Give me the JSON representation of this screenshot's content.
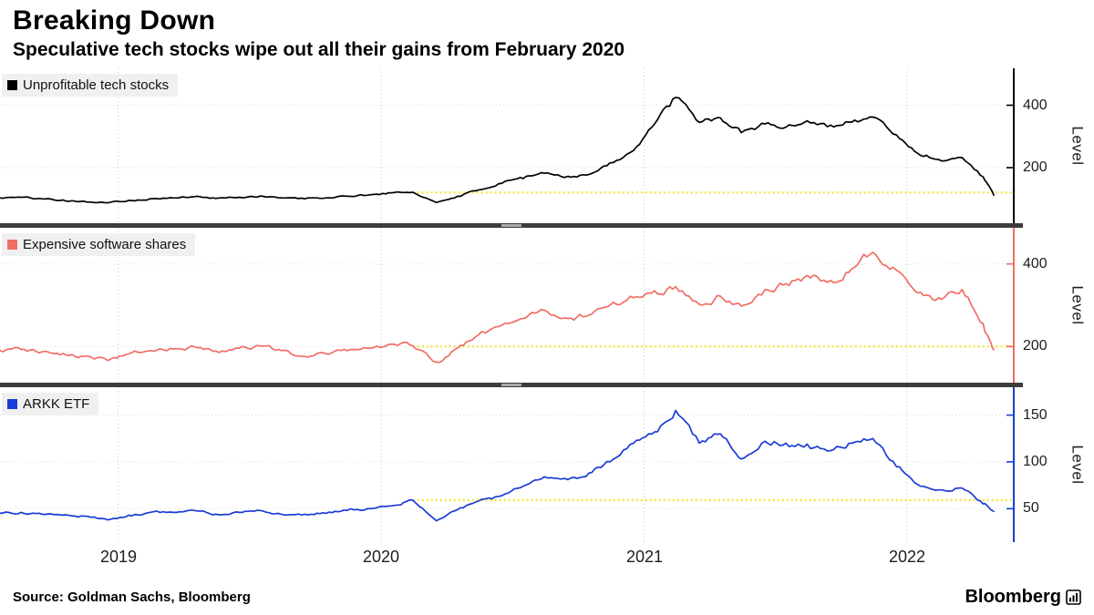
{
  "chart_data": {
    "type": "line",
    "title": "Breaking Down",
    "subtitle": "Speculative tech stocks wipe out all their gains from February 2020",
    "grid": "dotted",
    "legend_position": "top-left-of-each-panel",
    "x_range": [
      2018.55,
      2022.42
    ],
    "x_ticks": [
      {
        "year": 2019,
        "label": "2019"
      },
      {
        "year": 2020,
        "label": "2020"
      },
      {
        "year": 2021,
        "label": "2021"
      },
      {
        "year": 2022,
        "label": "2022"
      }
    ],
    "x": [
      2018.55,
      2018.63,
      2018.71,
      2018.79,
      2018.87,
      2018.96,
      2019.04,
      2019.12,
      2019.21,
      2019.29,
      2019.37,
      2019.46,
      2019.54,
      2019.62,
      2019.71,
      2019.79,
      2019.87,
      2019.96,
      2020.04,
      2020.12,
      2020.21,
      2020.29,
      2020.37,
      2020.46,
      2020.54,
      2020.62,
      2020.71,
      2020.79,
      2020.87,
      2020.96,
      2021.04,
      2021.12,
      2021.21,
      2021.29,
      2021.37,
      2021.46,
      2021.54,
      2021.62,
      2021.71,
      2021.79,
      2021.87,
      2021.96,
      2022.04,
      2022.12,
      2022.21,
      2022.29,
      2022.33
    ],
    "panels": [
      {
        "name": "Unprofitable tech stocks",
        "color": "#000000",
        "axis_color": "#000000",
        "ylabel": "Level",
        "yticks": [
          200,
          400
        ],
        "ylim": [
          45,
          495
        ],
        "baseline": {
          "value": 120,
          "from_x": 2020.12,
          "color": "#f3e73b",
          "note": "February 2020 level"
        },
        "values": [
          103,
          105,
          100,
          96,
          92,
          87,
          95,
          100,
          103,
          107,
          101,
          105,
          109,
          103,
          100,
          103,
          108,
          113,
          119,
          121,
          88,
          108,
          128,
          150,
          165,
          182,
          172,
          178,
          215,
          255,
          340,
          425,
          345,
          360,
          312,
          340,
          330,
          350,
          336,
          346,
          362,
          305,
          246,
          226,
          232,
          170,
          112
        ]
      },
      {
        "name": "Expensive software shares",
        "color": "#f06e64",
        "axis_color": "#f06e64",
        "ylabel": "Level",
        "yticks": [
          200,
          400
        ],
        "ylim": [
          130,
          470
        ],
        "baseline": {
          "value": 200,
          "from_x": 2020.12,
          "color": "#f3e73b",
          "note": "February 2020 level"
        },
        "values": [
          190,
          193,
          187,
          183,
          176,
          166,
          182,
          190,
          194,
          199,
          189,
          196,
          201,
          190,
          176,
          182,
          190,
          196,
          206,
          202,
          162,
          196,
          228,
          252,
          268,
          288,
          268,
          276,
          300,
          318,
          335,
          345,
          302,
          322,
          298,
          338,
          352,
          372,
          360,
          388,
          428,
          385,
          330,
          318,
          338,
          255,
          192
        ]
      },
      {
        "name": "ARKK ETF",
        "color": "#1a3cd6",
        "axis_color": "#1a3cd6",
        "ylabel": "Level",
        "yticks": [
          50,
          100,
          150
        ],
        "ylim": [
          22,
          172
        ],
        "baseline": {
          "value": 59,
          "from_x": 2020.12,
          "color": "#f3e73b",
          "note": "February 2020 level"
        },
        "values": [
          45,
          46,
          44,
          43,
          42,
          38,
          43,
          46,
          46,
          48,
          44,
          46,
          48,
          44,
          44,
          45,
          48,
          50,
          53,
          59,
          37,
          49,
          58,
          64,
          74,
          84,
          81,
          88,
          100,
          120,
          132,
          155,
          120,
          130,
          103,
          122,
          120,
          119,
          112,
          120,
          125,
          95,
          76,
          70,
          72,
          55,
          47
        ]
      }
    ]
  },
  "source": "Source: Goldman Sachs, Bloomberg",
  "brand": "Bloomberg",
  "separator_color": "#3d3d3d"
}
